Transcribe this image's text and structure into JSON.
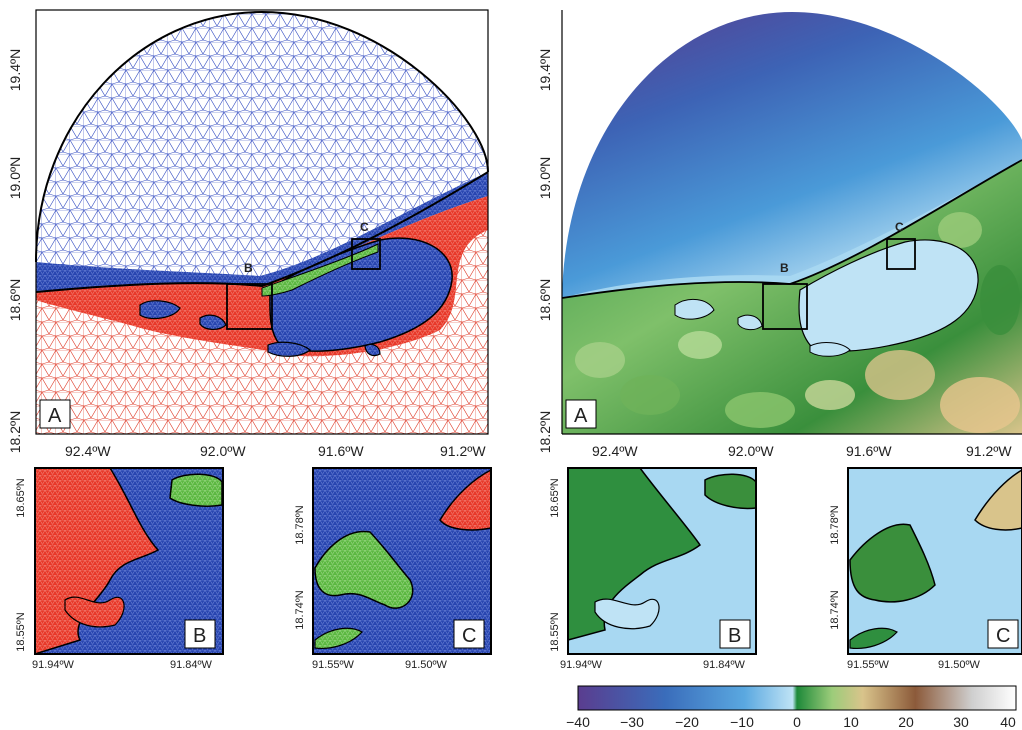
{
  "left_map": {
    "x_ticks": [
      "92.4ºW",
      "92.0ºW",
      "91.6ºW",
      "91.2ºW"
    ],
    "y_ticks": [
      "19.4ºN",
      "19.0ºN",
      "18.6ºN",
      "18.2ºN"
    ],
    "panel_label": "A",
    "box_labels": [
      "B",
      "C"
    ],
    "colors": {
      "ocean_mesh": "#2b4bb0",
      "land_mesh": "#e33a2c",
      "island_mesh": "#66c24a"
    }
  },
  "right_map": {
    "x_ticks": [
      "92.4ºW",
      "92.0ºW",
      "91.6ºW",
      "91.2ºW"
    ],
    "y_ticks": [
      "19.4ºN",
      "19.0ºN",
      "18.6ºN",
      "18.2ºN"
    ],
    "panel_label": "A",
    "box_labels": [
      "B",
      "C"
    ]
  },
  "insets": {
    "B": {
      "label": "B",
      "x_ticks": [
        "91.94ºW",
        "91.84ºW"
      ],
      "y_ticks": [
        "18.65ºN",
        "18.55ºN"
      ]
    },
    "C": {
      "label": "C",
      "x_ticks": [
        "91.55ºW",
        "91.50ºW"
      ],
      "y_ticks": [
        "18.78ºN",
        "18.74ºN"
      ]
    }
  },
  "colorbar": {
    "ticks": [
      "−40",
      "−30",
      "−20",
      "−10",
      "0",
      "10",
      "20",
      "30",
      "40"
    ],
    "stops": [
      "#5a3d8f",
      "#3a6dbb",
      "#5aa8e0",
      "#bfe3f5",
      "#1e8a3a",
      "#9ccc7a",
      "#d9c48b",
      "#8c5a3a",
      "#ffffff"
    ]
  }
}
